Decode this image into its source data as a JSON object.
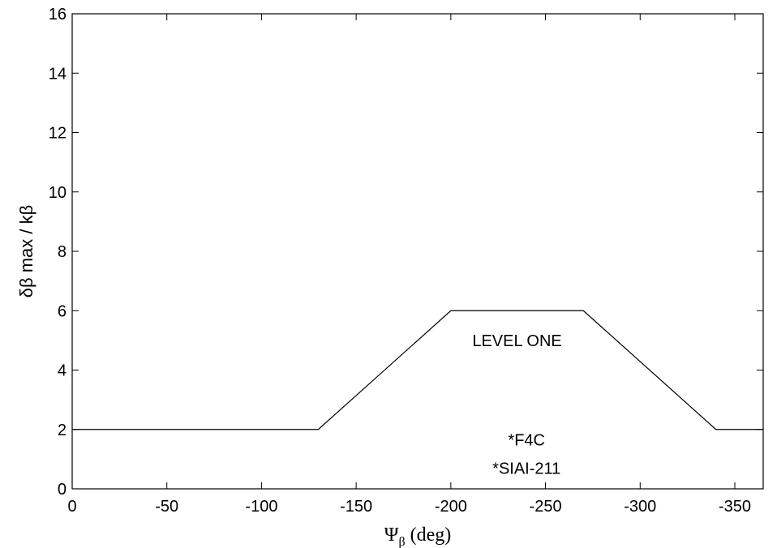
{
  "chart_data": {
    "type": "line",
    "xlabel_symbol": "Ψ",
    "xlabel_subscript": "β",
    "xlabel_unit": " (deg)",
    "ylabel": "δβ max / kβ",
    "xlim": [
      0,
      -365
    ],
    "ylim": [
      0,
      16
    ],
    "xticks": [
      0,
      -50,
      -100,
      -150,
      -200,
      -250,
      -300,
      -350
    ],
    "yticks": [
      0,
      2,
      4,
      6,
      8,
      10,
      12,
      14,
      16
    ],
    "grid": false,
    "series": [
      {
        "x": [
          0,
          -130,
          -200,
          -270,
          -340,
          -365
        ],
        "y": [
          2,
          2,
          6,
          6,
          2,
          2
        ]
      }
    ],
    "annotations": [
      {
        "text": "LEVEL ONE",
        "x": -235,
        "y": 5.0
      },
      {
        "text": "*F4C",
        "x": -240,
        "y": 1.65
      },
      {
        "text": "*SIAI-211",
        "x": -240,
        "y": 0.7
      }
    ]
  }
}
